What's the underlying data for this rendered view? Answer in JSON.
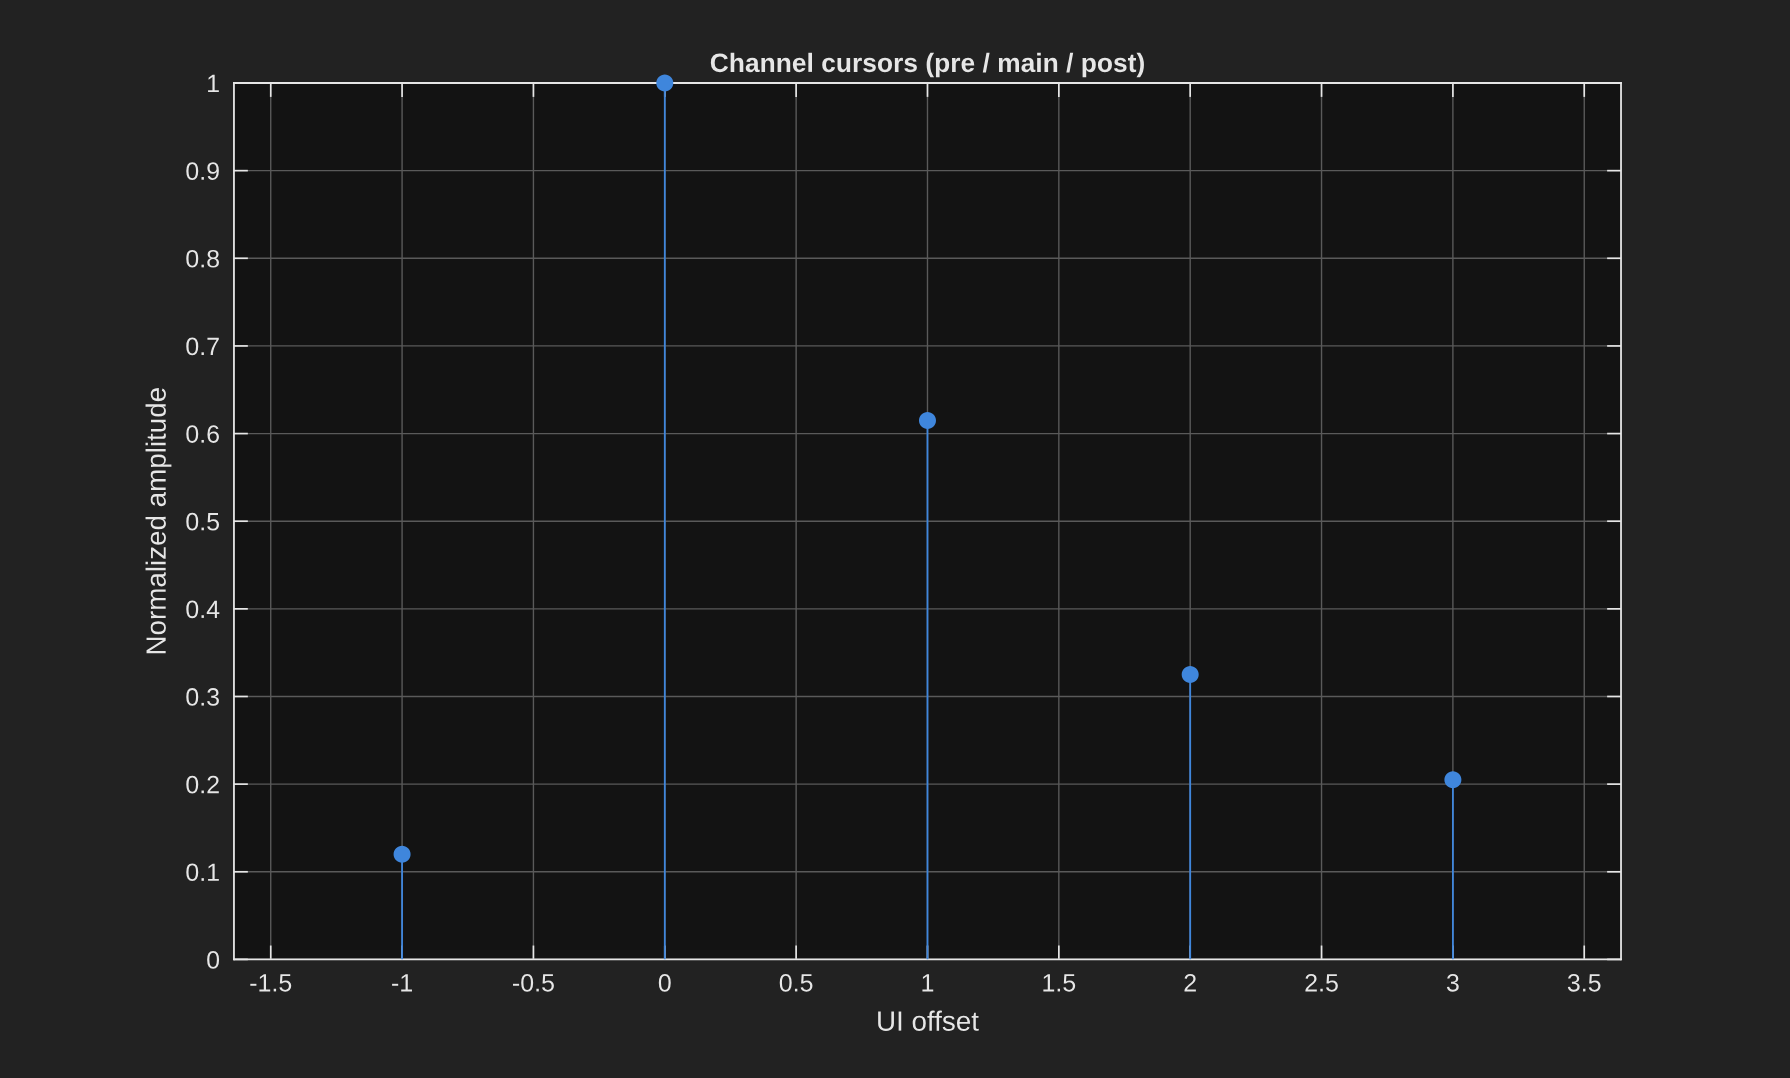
{
  "chart_data": {
    "type": "lollipop",
    "title": "Channel cursors (pre / main / post)",
    "xlabel": "UI offset",
    "ylabel": "Normalized amplitude",
    "x": [
      -1,
      0,
      1,
      2,
      3
    ],
    "values": [
      0.12,
      1,
      0.615,
      0.325,
      0.205
    ],
    "color": "#3f86dc",
    "xlim": [
      -1.64,
      3.64
    ],
    "xticks": [
      -1.5,
      -1,
      -0.5,
      0,
      0.5,
      1,
      1.5,
      2,
      2.5,
      3,
      3.5
    ],
    "ylim": [
      0,
      1
    ],
    "yticks": [
      0,
      0.1,
      0.2,
      0.3,
      0.4,
      0.5,
      0.6,
      0.7,
      0.8,
      0.9,
      1
    ],
    "grid": true,
    "marker": "circle"
  }
}
